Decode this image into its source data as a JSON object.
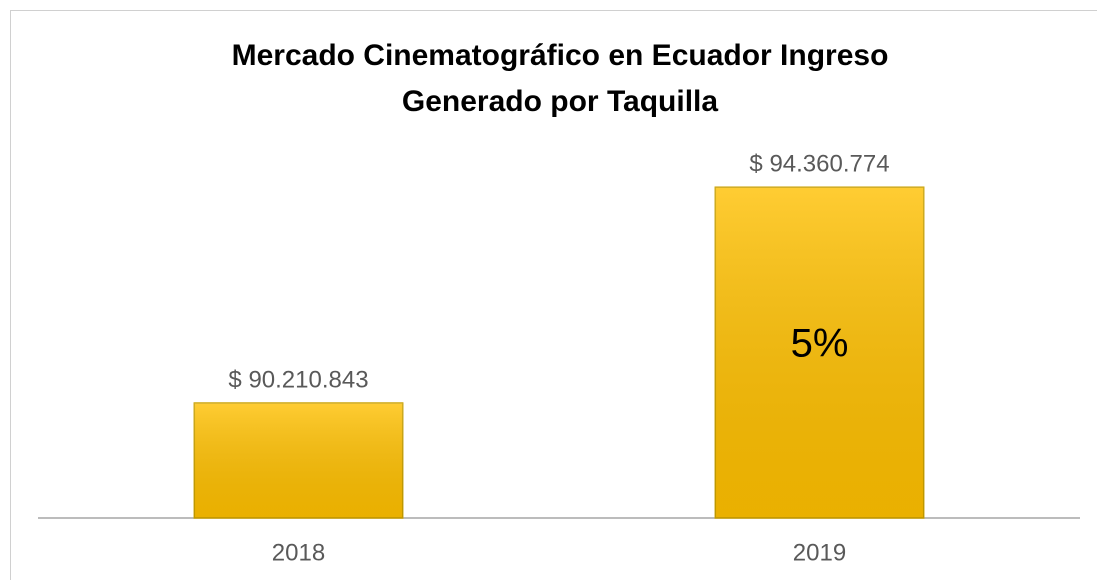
{
  "chart_data": {
    "type": "bar",
    "title": [
      "Mercado Cinematográfico en Ecuador Ingreso",
      "Generado por Taquilla"
    ],
    "categories": [
      "2018",
      "2019"
    ],
    "values": [
      90210843,
      94360774
    ],
    "value_labels": [
      "$ 90.210.843",
      "$ 94.360.774"
    ],
    "annotation": "5%",
    "color": "#ffc000",
    "ylim": [
      88000000,
      96000000
    ]
  }
}
